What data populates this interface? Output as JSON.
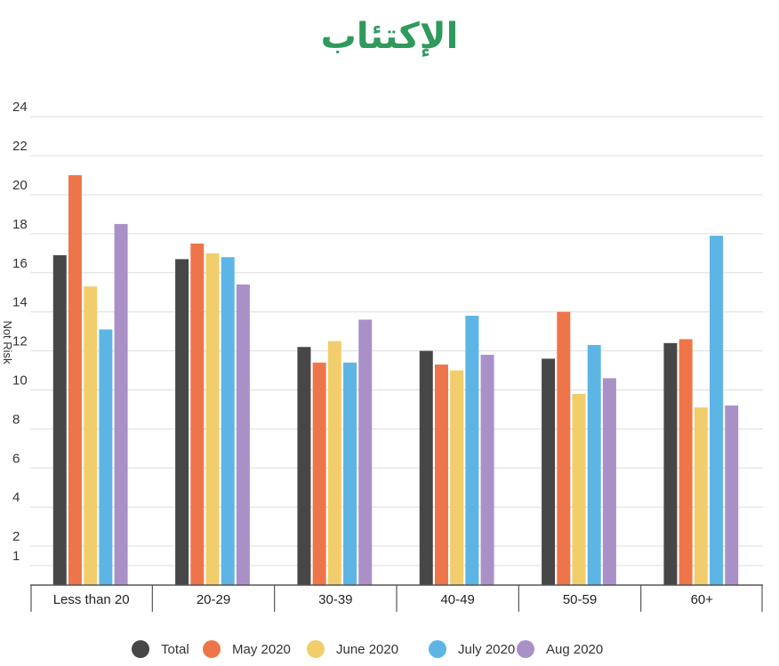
{
  "chart_data": {
    "type": "bar",
    "title": "الإكتئاب",
    "ylabel": "Not Risk",
    "xlabel": "",
    "yticks": [
      1,
      2,
      4,
      6,
      8,
      10,
      12,
      14,
      16,
      18,
      20,
      22,
      24
    ],
    "ylim": [
      0,
      24
    ],
    "grid": true,
    "legend_position": "bottom",
    "categories": [
      "Less than 20",
      "20-29",
      "30-39",
      "40-49",
      "50-59",
      "60+"
    ],
    "series": [
      {
        "name": "Total",
        "color": "#474747",
        "values": [
          16.9,
          16.7,
          12.2,
          12.0,
          11.6,
          12.4
        ]
      },
      {
        "name": "May 2020",
        "color": "#ee754a",
        "values": [
          21.0,
          17.5,
          11.4,
          11.3,
          14.0,
          12.6
        ]
      },
      {
        "name": "June 2020",
        "color": "#f1cd6c",
        "values": [
          15.3,
          17.0,
          12.5,
          11.0,
          9.8,
          9.1
        ]
      },
      {
        "name": "July 2020",
        "color": "#5db5e5",
        "values": [
          13.1,
          16.8,
          11.4,
          13.8,
          12.3,
          17.9
        ]
      },
      {
        "name": "Aug 2020",
        "color": "#a991c8",
        "values": [
          18.5,
          15.4,
          13.6,
          11.8,
          10.6,
          9.2
        ]
      }
    ]
  }
}
